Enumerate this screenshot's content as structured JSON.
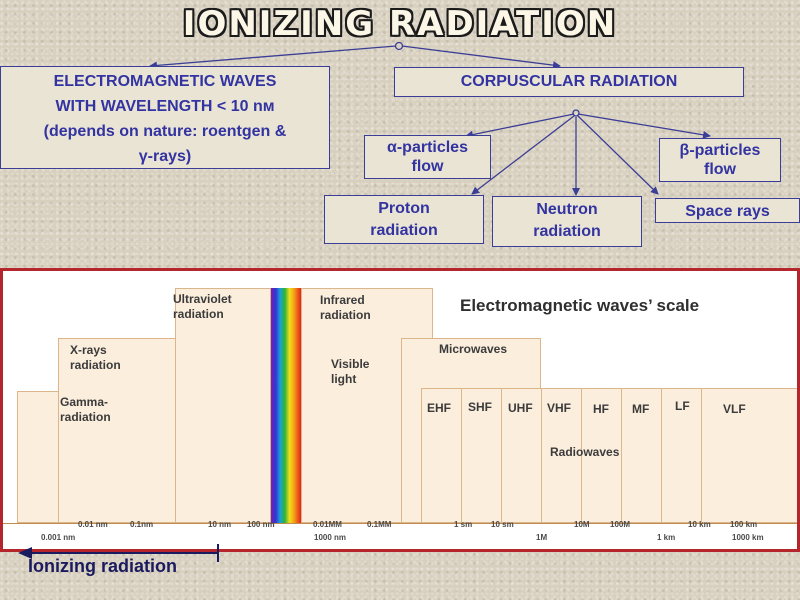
{
  "title": "IONIZING RADIATION",
  "em_box": {
    "line1": "ELECTROMAGNETIC WAVES",
    "line2": "WITH WAVELENGTH < 10 nм",
    "line3": "(depends on nature: roentgen &",
    "line4": "γ-rays)"
  },
  "corpuscular": {
    "label": "CORPUSCULAR RADIATION",
    "alpha": [
      "α-particles",
      "flow"
    ],
    "beta": [
      "β-particles",
      "flow"
    ],
    "proton": [
      "Proton",
      "radiation"
    ],
    "neutron": [
      "Neutron",
      "radiation"
    ],
    "space": "Space rays"
  },
  "scale": {
    "title": "Electromagnetic waves’ scale",
    "bands": {
      "gamma": [
        "Gamma-",
        "radiation"
      ],
      "xray": [
        "X-rays",
        "radiation"
      ],
      "uv": [
        "Ultraviolet",
        "radiation"
      ],
      "infrared": [
        "Infrared",
        "radiation"
      ],
      "visible": [
        "Visible",
        "light"
      ],
      "microwaves": "Microwaves",
      "radiowaves": "Radiowaves"
    },
    "freq_bands": [
      "EHF",
      "SHF",
      "UHF",
      "VHF",
      "HF",
      "MF",
      "LF",
      "VLF"
    ],
    "ticks_top": [
      "0.01 nm",
      "0.1nm",
      "10 nm",
      "100 nm",
      "0.01MM",
      "0.1MM",
      "1 sm",
      "10 sm",
      "10M",
      "100M",
      "10 km",
      "100 km"
    ],
    "ticks_bottom": [
      "0.001 nm",
      "1000 nm",
      "1M",
      "1 km",
      "1000 km"
    ]
  },
  "ionizing_label": "Ionizing radiation",
  "colors": {
    "box_text": "#3333a1",
    "box_border": "#3b3e96",
    "panel_border": "#b5252c",
    "band_fill": "#fbeedd",
    "band_border": "#ddb58a"
  }
}
